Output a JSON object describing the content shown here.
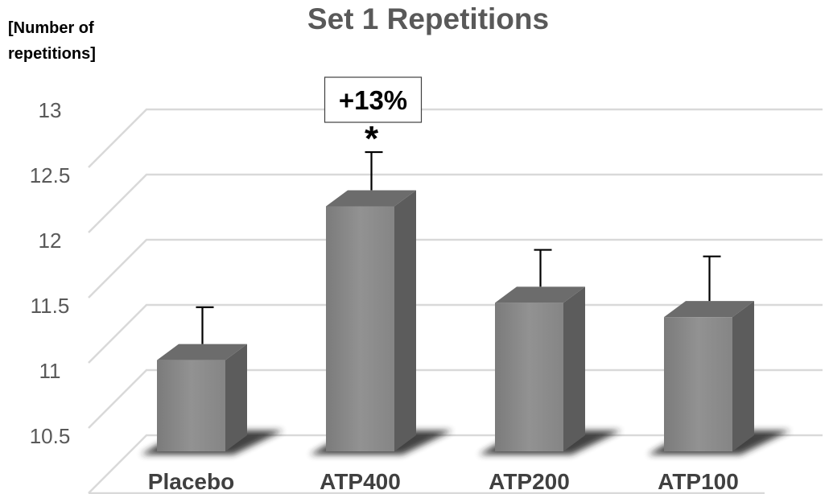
{
  "chart_data": {
    "type": "bar",
    "title": "Set 1 Repetitions",
    "ylabel_line1": "[Number of",
    "ylabel_line2": "repetitions]",
    "categories": [
      "Placebo",
      "ATP400",
      "ATP200",
      "ATP100"
    ],
    "values": [
      11.2,
      12.38,
      11.64,
      11.53
    ],
    "errors": [
      0.27,
      0.28,
      0.27,
      0.33
    ],
    "yticks": [
      "10.5",
      "11",
      "11.5",
      "12",
      "12.5",
      "13"
    ],
    "ylim": [
      10.5,
      13.25
    ],
    "grid": true,
    "annotation": {
      "category": "ATP400",
      "label": "+13%",
      "significance": "*"
    },
    "colors": {
      "bar_front": "#8a8a8a",
      "bar_side": "#5c5c5c",
      "bar_top": "#6c6c6c",
      "grid": "#d9d9d9"
    }
  }
}
